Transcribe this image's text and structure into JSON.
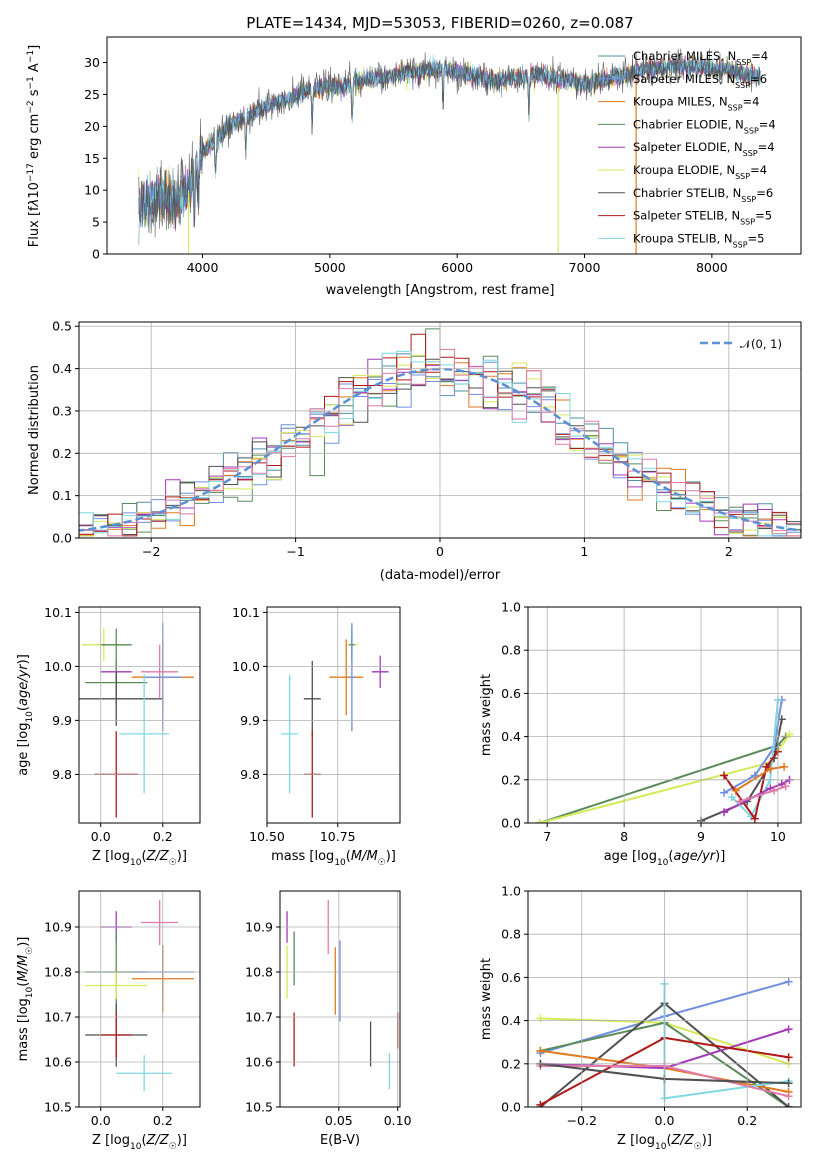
{
  "colors": {
    "Chabrier MILES": "#4f8fa8",
    "Salpeter MILES": "#6f8fe0",
    "Kroupa MILES": "#e07a1f",
    "Chabrier ELODIE": "#5a8a5a",
    "Salpeter ELODIE": "#a23ab8",
    "Kroupa ELODIE": "#d4ea5a",
    "Chabrier STELIB": "#505050",
    "Salpeter STELIB": "#b01818",
    "Kroupa STELIB": "#7fd8e2",
    "extra_pink": "#e07aa8",
    "gauss": "#5b8fd6"
  },
  "chart_data": [
    {
      "id": "spectrum",
      "type": "line",
      "title": "PLATE=1434, MJD=53053, FIBERID=0260, z=0.087",
      "xlabel": "wavelength [Angstrom, rest frame]",
      "ylabel_html": "Flux [f<tspan font-style='italic'>λ</tspan>10<tspan baseline-shift='super' font-size='9'>−17</tspan> erg cm<tspan baseline-shift='super' font-size='9'>−2</tspan> s<tspan baseline-shift='super' font-size='9'>−1</tspan> A<tspan baseline-shift='super' font-size='9'>−1</tspan>]",
      "xlim": [
        3250,
        8700
      ],
      "ylim": [
        0,
        34
      ],
      "xticks": [
        4000,
        5000,
        6000,
        7000,
        8000
      ],
      "yticks": [
        0,
        5,
        10,
        15,
        20,
        25,
        30
      ],
      "continuum": [
        [
          3500,
          7
        ],
        [
          3600,
          8.5
        ],
        [
          3700,
          9
        ],
        [
          3800,
          8.5
        ],
        [
          3900,
          10
        ],
        [
          4000,
          16
        ],
        [
          4100,
          18
        ],
        [
          4200,
          20
        ],
        [
          4300,
          21
        ],
        [
          4400,
          22
        ],
        [
          4500,
          23
        ],
        [
          4600,
          24
        ],
        [
          4700,
          24.5
        ],
        [
          4800,
          25.5
        ],
        [
          4900,
          26
        ],
        [
          5000,
          26.5
        ],
        [
          5100,
          26
        ],
        [
          5200,
          27
        ],
        [
          5300,
          27.5
        ],
        [
          5400,
          27.5
        ],
        [
          5500,
          28
        ],
        [
          5600,
          28.5
        ],
        [
          5700,
          28.5
        ],
        [
          5800,
          29
        ],
        [
          5900,
          29
        ],
        [
          6000,
          28.5
        ],
        [
          6100,
          28
        ],
        [
          6200,
          27.5
        ],
        [
          6300,
          27
        ],
        [
          6400,
          27.5
        ],
        [
          6500,
          27.5
        ],
        [
          6600,
          28
        ],
        [
          6700,
          28
        ],
        [
          6800,
          27.5
        ],
        [
          6900,
          27
        ],
        [
          7000,
          26.5
        ],
        [
          7100,
          27
        ],
        [
          7200,
          27.5
        ],
        [
          7300,
          28
        ],
        [
          7400,
          28.5
        ],
        [
          7500,
          29
        ],
        [
          7600,
          29
        ],
        [
          7700,
          29.5
        ],
        [
          7800,
          29.5
        ],
        [
          7900,
          29.5
        ],
        [
          8000,
          29
        ],
        [
          8100,
          29
        ],
        [
          8200,
          28.5
        ],
        [
          8300,
          28
        ]
      ],
      "legend": [
        {
          "name": "Chabrier MILES",
          "label": "Chabrier MILES, N",
          "sub": "SSP",
          "val": "=4"
        },
        {
          "name": "Salpeter MILES",
          "label": "Salpeter MILES, N",
          "sub": "SSP",
          "val": "=6"
        },
        {
          "name": "Kroupa MILES",
          "label": "Kroupa MILES, N",
          "sub": "SSP",
          "val": "=4"
        },
        {
          "name": "Chabrier ELODIE",
          "label": "Chabrier ELODIE, N",
          "sub": "SSP",
          "val": "=4"
        },
        {
          "name": "Salpeter ELODIE",
          "label": "Salpeter ELODIE, N",
          "sub": "SSP",
          "val": "=4"
        },
        {
          "name": "Kroupa ELODIE",
          "label": "Kroupa ELODIE, N",
          "sub": "SSP",
          "val": "=4"
        },
        {
          "name": "Chabrier STELIB",
          "label": "Chabrier STELIB, N",
          "sub": "SSP",
          "val": "=6"
        },
        {
          "name": "Salpeter STELIB",
          "label": "Salpeter STELIB, N",
          "sub": "SSP",
          "val": "=5"
        },
        {
          "name": "Kroupa STELIB",
          "label": "Kroupa STELIB, N",
          "sub": "SSP",
          "val": "=5"
        }
      ]
    },
    {
      "id": "residuals",
      "type": "line",
      "xlabel": "(data-model)/error",
      "ylabel": "Normed distribution",
      "xlim": [
        -2.5,
        2.5
      ],
      "ylim": [
        0,
        0.51
      ],
      "xticks": [
        -2,
        -1,
        0,
        1,
        2
      ],
      "xticklabels": [
        "−2",
        "−1",
        "0",
        "1",
        "2"
      ],
      "yticks": [
        0,
        0.1,
        0.2,
        0.3,
        0.4,
        0.5
      ],
      "yticklabels": [
        "0.0",
        "0.1",
        "0.2",
        "0.3",
        "0.4",
        "0.5"
      ],
      "legend": "𝒩(0, 1)",
      "bin_width": 0.1
    },
    {
      "id": "age_vs_Z",
      "type": "scatter",
      "xlabel_html": "Z [log<tspan baseline-shift='sub' font-size='9'>10</tspan>(<tspan font-style='italic'>Z/Z</tspan><tspan baseline-shift='sub' font-size='9'>☉</tspan>)]",
      "ylabel_html": "age  [log<tspan baseline-shift='sub' font-size='9'>10</tspan>(<tspan font-style='italic'>age/yr</tspan>)]",
      "xlim": [
        -0.07,
        0.32
      ],
      "ylim": [
        9.71,
        10.11
      ],
      "xticks": [
        0.0,
        0.2
      ],
      "xticklabels": [
        "0.0",
        "0.2"
      ],
      "yticks": [
        9.8,
        9.9,
        10.0,
        10.1
      ],
      "yticklabels": [
        "9.8",
        "9.9",
        "10.0",
        "10.1"
      ],
      "points": [
        {
          "model": "Kroupa ELODIE",
          "x": 0.01,
          "y": 10.04,
          "xerr": 0.07,
          "yerr": 0.03
        },
        {
          "model": "Chabrier ELODIE",
          "x": 0.05,
          "y": 10.04,
          "xerr": 0.05,
          "yerr": 0.03
        },
        {
          "model": "Salpeter ELODIE",
          "x": 0.05,
          "y": 9.99,
          "xerr": 0.05,
          "yerr": 0.02
        },
        {
          "model": "Chabrier ELODIE",
          "x": 0.05,
          "y": 9.97,
          "xerr": 0.1,
          "yerr": 0.04
        },
        {
          "model": "Chabrier STELIB",
          "x": 0.05,
          "y": 9.94,
          "xerr": 0.15,
          "yerr": 0.05
        },
        {
          "model": "Salpeter STELIB",
          "x": 0.05,
          "y": 9.8,
          "xerr": 0.07,
          "yerr": 0.08
        },
        {
          "model": "extra_pink",
          "x": 0.19,
          "y": 9.99,
          "xerr": 0.06,
          "yerr": 0.05
        },
        {
          "model": "Kroupa MILES",
          "x": 0.2,
          "y": 9.98,
          "xerr": 0.1,
          "yerr": 0.07
        },
        {
          "model": "Salpeter MILES",
          "x": 0.2,
          "y": 9.98,
          "xerr": 0.06,
          "yerr": 0.1
        },
        {
          "model": "Kroupa STELIB",
          "x": 0.14,
          "y": 9.875,
          "xerr": 0.08,
          "yerr": 0.11
        }
      ]
    },
    {
      "id": "age_vs_mass",
      "type": "scatter",
      "xlabel_html": "mass [log<tspan baseline-shift='sub' font-size='9'>10</tspan>(<tspan font-style='italic'>M/M</tspan><tspan baseline-shift='sub' font-size='9'>☉</tspan>)]",
      "xlim": [
        10.5,
        10.97
      ],
      "ylim": [
        9.71,
        10.11
      ],
      "xticks": [
        10.5,
        10.75
      ],
      "xticklabels": [
        "10.50",
        "10.75"
      ],
      "yticks": [
        9.8,
        9.9,
        10.0,
        10.1
      ],
      "yticklabels": [
        "9.8",
        "9.9",
        "10.0",
        "10.1"
      ],
      "points": [
        {
          "model": "Kroupa ELODIE",
          "x": 10.8,
          "y": 10.04,
          "xerr": 0.02,
          "yerr": 0.04
        },
        {
          "model": "Chabrier ELODIE",
          "x": 10.8,
          "y": 10.04,
          "xerr": 0.01,
          "yerr": 0.03
        },
        {
          "model": "Salpeter ELODIE",
          "x": 10.9,
          "y": 9.99,
          "xerr": 0.03,
          "yerr": 0.03
        },
        {
          "model": "Chabrier STELIB",
          "x": 10.66,
          "y": 9.94,
          "xerr": 0.03,
          "yerr": 0.07
        },
        {
          "model": "Salpeter STELIB",
          "x": 10.66,
          "y": 9.8,
          "xerr": 0.03,
          "yerr": 0.08
        },
        {
          "model": "Kroupa MILES",
          "x": 10.78,
          "y": 9.98,
          "xerr": 0.06,
          "yerr": 0.07
        },
        {
          "model": "Salpeter MILES",
          "x": 10.8,
          "y": 9.98,
          "xerr": 0.01,
          "yerr": 0.1
        },
        {
          "model": "Kroupa STELIB",
          "x": 10.58,
          "y": 9.875,
          "xerr": 0.03,
          "yerr": 0.11
        }
      ]
    },
    {
      "id": "weights_vs_age",
      "type": "line",
      "xlabel_html": "age  [log<tspan baseline-shift='sub' font-size='9'>10</tspan>(<tspan font-style='italic'>age/yr</tspan>)]",
      "ylabel": "mass weight",
      "xlim": [
        6.75,
        10.3
      ],
      "ylim": [
        0,
        1.0
      ],
      "xticks": [
        7,
        8,
        9,
        10
      ],
      "xticklabels": [
        "7",
        "8",
        "9",
        "10"
      ],
      "yticks": [
        0,
        0.2,
        0.4,
        0.6,
        0.8,
        1.0
      ],
      "yticklabels": [
        "0.0",
        "0.2",
        "0.4",
        "0.6",
        "0.8",
        "1.0"
      ],
      "series": [
        {
          "model": "Chabrier ELODIE",
          "x": [
            6.9,
            10.0,
            10.1
          ],
          "y": [
            0.0,
            0.36,
            0.4
          ]
        },
        {
          "model": "Kroupa ELODIE",
          "x": [
            6.9,
            9.9,
            10.15
          ],
          "y": [
            0.0,
            0.28,
            0.41
          ]
        },
        {
          "model": "Chabrier STELIB",
          "x": [
            9.0,
            9.6,
            9.95,
            10.05
          ],
          "y": [
            0.01,
            0.1,
            0.3,
            0.48
          ]
        },
        {
          "model": "Salpeter MILES",
          "x": [
            9.3,
            9.7,
            9.95,
            10.05
          ],
          "y": [
            0.14,
            0.22,
            0.35,
            0.57
          ]
        },
        {
          "model": "Kroupa STELIB",
          "x": [
            9.4,
            9.65,
            9.9,
            10.0
          ],
          "y": [
            0.12,
            0.03,
            0.2,
            0.57
          ]
        },
        {
          "model": "Salpeter STELIB",
          "x": [
            9.3,
            9.7,
            9.85,
            10.0
          ],
          "y": [
            0.22,
            0.02,
            0.26,
            0.33
          ]
        },
        {
          "model": "Salpeter ELODIE",
          "x": [
            9.3,
            9.9,
            10.05,
            10.15
          ],
          "y": [
            0.05,
            0.16,
            0.18,
            0.2
          ]
        },
        {
          "model": "Kroupa MILES",
          "x": [
            9.45,
            9.9,
            10.08
          ],
          "y": [
            0.15,
            0.25,
            0.26
          ]
        },
        {
          "model": "extra_pink",
          "x": [
            9.5,
            9.95,
            10.1
          ],
          "y": [
            0.1,
            0.15,
            0.17
          ]
        }
      ]
    },
    {
      "id": "mass_vs_Z",
      "type": "scatter",
      "xlabel_html": "Z [log<tspan baseline-shift='sub' font-size='9'>10</tspan>(<tspan font-style='italic'>Z/Z</tspan><tspan baseline-shift='sub' font-size='9'>☉</tspan>)]",
      "ylabel_html": "mass [log<tspan baseline-shift='sub' font-size='9'>10</tspan>(<tspan font-style='italic'>M/M</tspan><tspan baseline-shift='sub' font-size='9'>☉</tspan>)]",
      "xlim": [
        -0.07,
        0.32
      ],
      "ylim": [
        10.5,
        10.98
      ],
      "xticks": [
        0.0,
        0.2
      ],
      "xticklabels": [
        "0.0",
        "0.2"
      ],
      "yticks": [
        10.5,
        10.6,
        10.7,
        10.8,
        10.9
      ],
      "yticklabels": [
        "10.5",
        "10.6",
        "10.7",
        "10.8",
        "10.9"
      ],
      "points": [
        {
          "model": "Salpeter ELODIE",
          "x": 0.05,
          "y": 10.9,
          "xerr": 0.05,
          "yerr": 0.035
        },
        {
          "model": "Chabrier ELODIE",
          "x": 0.05,
          "y": 10.8,
          "xerr": 0.1,
          "yerr": 0.09
        },
        {
          "model": "Kroupa ELODIE",
          "x": 0.05,
          "y": 10.77,
          "xerr": 0.1,
          "yerr": 0.03
        },
        {
          "model": "Chabrier STELIB",
          "x": 0.05,
          "y": 10.66,
          "xerr": 0.1,
          "yerr": 0.07
        },
        {
          "model": "Salpeter STELIB",
          "x": 0.05,
          "y": 10.66,
          "xerr": 0.05,
          "yerr": 0.05
        },
        {
          "model": "extra_pink",
          "x": 0.19,
          "y": 10.91,
          "xerr": 0.06,
          "yerr": 0.05
        },
        {
          "model": "Salpeter MILES",
          "x": 0.2,
          "y": 10.8,
          "xerr": 0.1,
          "yerr": 0.06
        },
        {
          "model": "Kroupa MILES",
          "x": 0.2,
          "y": 10.785,
          "xerr": 0.1,
          "yerr": 0.075
        },
        {
          "model": "Kroupa STELIB",
          "x": 0.14,
          "y": 10.575,
          "xerr": 0.09,
          "yerr": 0.04
        }
      ]
    },
    {
      "id": "mass_vs_ebv",
      "type": "scatter",
      "xlabel": "E(B-V)",
      "xlim": [
        0.0,
        0.102
      ],
      "ylim": [
        10.5,
        10.98
      ],
      "xticks": [
        0.05,
        0.1
      ],
      "xticklabels": [
        "0.05",
        "0.10"
      ],
      "yticks": [
        10.5,
        10.6,
        10.7,
        10.8,
        10.9
      ],
      "yticklabels": [
        "10.5",
        "10.6",
        "10.7",
        "10.8",
        "10.9"
      ],
      "points": [
        {
          "model": "Kroupa ELODIE",
          "x": 0.006,
          "y": 10.8,
          "yerr": 0.06
        },
        {
          "model": "Salpeter ELODIE",
          "x": 0.006,
          "y": 10.9,
          "yerr": 0.035
        },
        {
          "model": "Chabrier ELODIE",
          "x": 0.012,
          "y": 10.83,
          "yerr": 0.06
        },
        {
          "model": "Salpeter STELIB",
          "x": 0.012,
          "y": 10.65,
          "yerr": 0.06
        },
        {
          "model": "extra_pink",
          "x": 0.041,
          "y": 10.9,
          "yerr": 0.06
        },
        {
          "model": "Kroupa MILES",
          "x": 0.047,
          "y": 10.78,
          "yerr": 0.075
        },
        {
          "model": "Salpeter MILES",
          "x": 0.051,
          "y": 10.78,
          "yerr": 0.09
        },
        {
          "model": "Chabrier STELIB",
          "x": 0.077,
          "y": 10.64,
          "yerr": 0.05
        },
        {
          "model": "Kroupa STELIB",
          "x": 0.093,
          "y": 10.58,
          "yerr": 0.04
        },
        {
          "model": "Salpeter STELIB",
          "x": 0.1,
          "y": 10.67,
          "yerr": 0.04
        }
      ]
    },
    {
      "id": "weights_vs_Z",
      "type": "line",
      "xlabel_html": "Z [log<tspan baseline-shift='sub' font-size='9'>10</tspan>(<tspan font-style='italic'>Z/Z</tspan><tspan baseline-shift='sub' font-size='9'>☉</tspan>)]",
      "ylabel": "mass weight",
      "xlim": [
        -0.33,
        0.33
      ],
      "ylim": [
        0,
        1.0
      ],
      "xticks": [
        -0.2,
        0.0,
        0.2
      ],
      "xticklabels": [
        "−0.2",
        "0.0",
        "0.2"
      ],
      "yticks": [
        0,
        0.2,
        0.4,
        0.6,
        0.8,
        1.0
      ],
      "yticklabels": [
        "0.0",
        "0.2",
        "0.4",
        "0.6",
        "0.8",
        "1.0"
      ],
      "series": [
        {
          "model": "Salpeter MILES",
          "x": [
            -0.3,
            0.0,
            0.3
          ],
          "y": [
            0.25,
            0.42,
            0.58
          ]
        },
        {
          "model": "Kroupa ELODIE",
          "x": [
            -0.3,
            0.0,
            0.3
          ],
          "y": [
            0.41,
            0.39,
            0.2
          ]
        },
        {
          "model": "Chabrier ELODIE",
          "x": [
            -0.3,
            0.0,
            0.3
          ],
          "y": [
            0.26,
            0.39,
            0.0
          ]
        },
        {
          "model": "Chabrier STELIB",
          "x": [
            -0.3,
            0.0,
            0.3
          ],
          "y": [
            0.0,
            0.48,
            0.0
          ]
        },
        {
          "model": "Kroupa MILES",
          "x": [
            -0.3,
            0.0,
            0.3
          ],
          "y": [
            0.26,
            0.18,
            0.07
          ]
        },
        {
          "model": "Salpeter ELODIE",
          "x": [
            -0.3,
            0.0,
            0.3
          ],
          "y": [
            0.2,
            0.18,
            0.36
          ]
        },
        {
          "model": "Salpeter STELIB",
          "x": [
            -0.3,
            0.0,
            0.3
          ],
          "y": [
            0.01,
            0.32,
            0.23
          ]
        },
        {
          "model": "Kroupa STELIB",
          "x": [
            0.0,
            0.0,
            0.3
          ],
          "y": [
            0.57,
            0.04,
            0.12
          ]
        },
        {
          "model": "extra_pink",
          "x": [
            -0.3,
            0.0,
            0.3
          ],
          "y": [
            0.19,
            0.19,
            0.05
          ]
        },
        {
          "model": "Chabrier STELIB",
          "x": [
            -0.3,
            0.0,
            0.3
          ],
          "y": [
            0.2,
            0.13,
            0.11
          ]
        }
      ]
    }
  ]
}
